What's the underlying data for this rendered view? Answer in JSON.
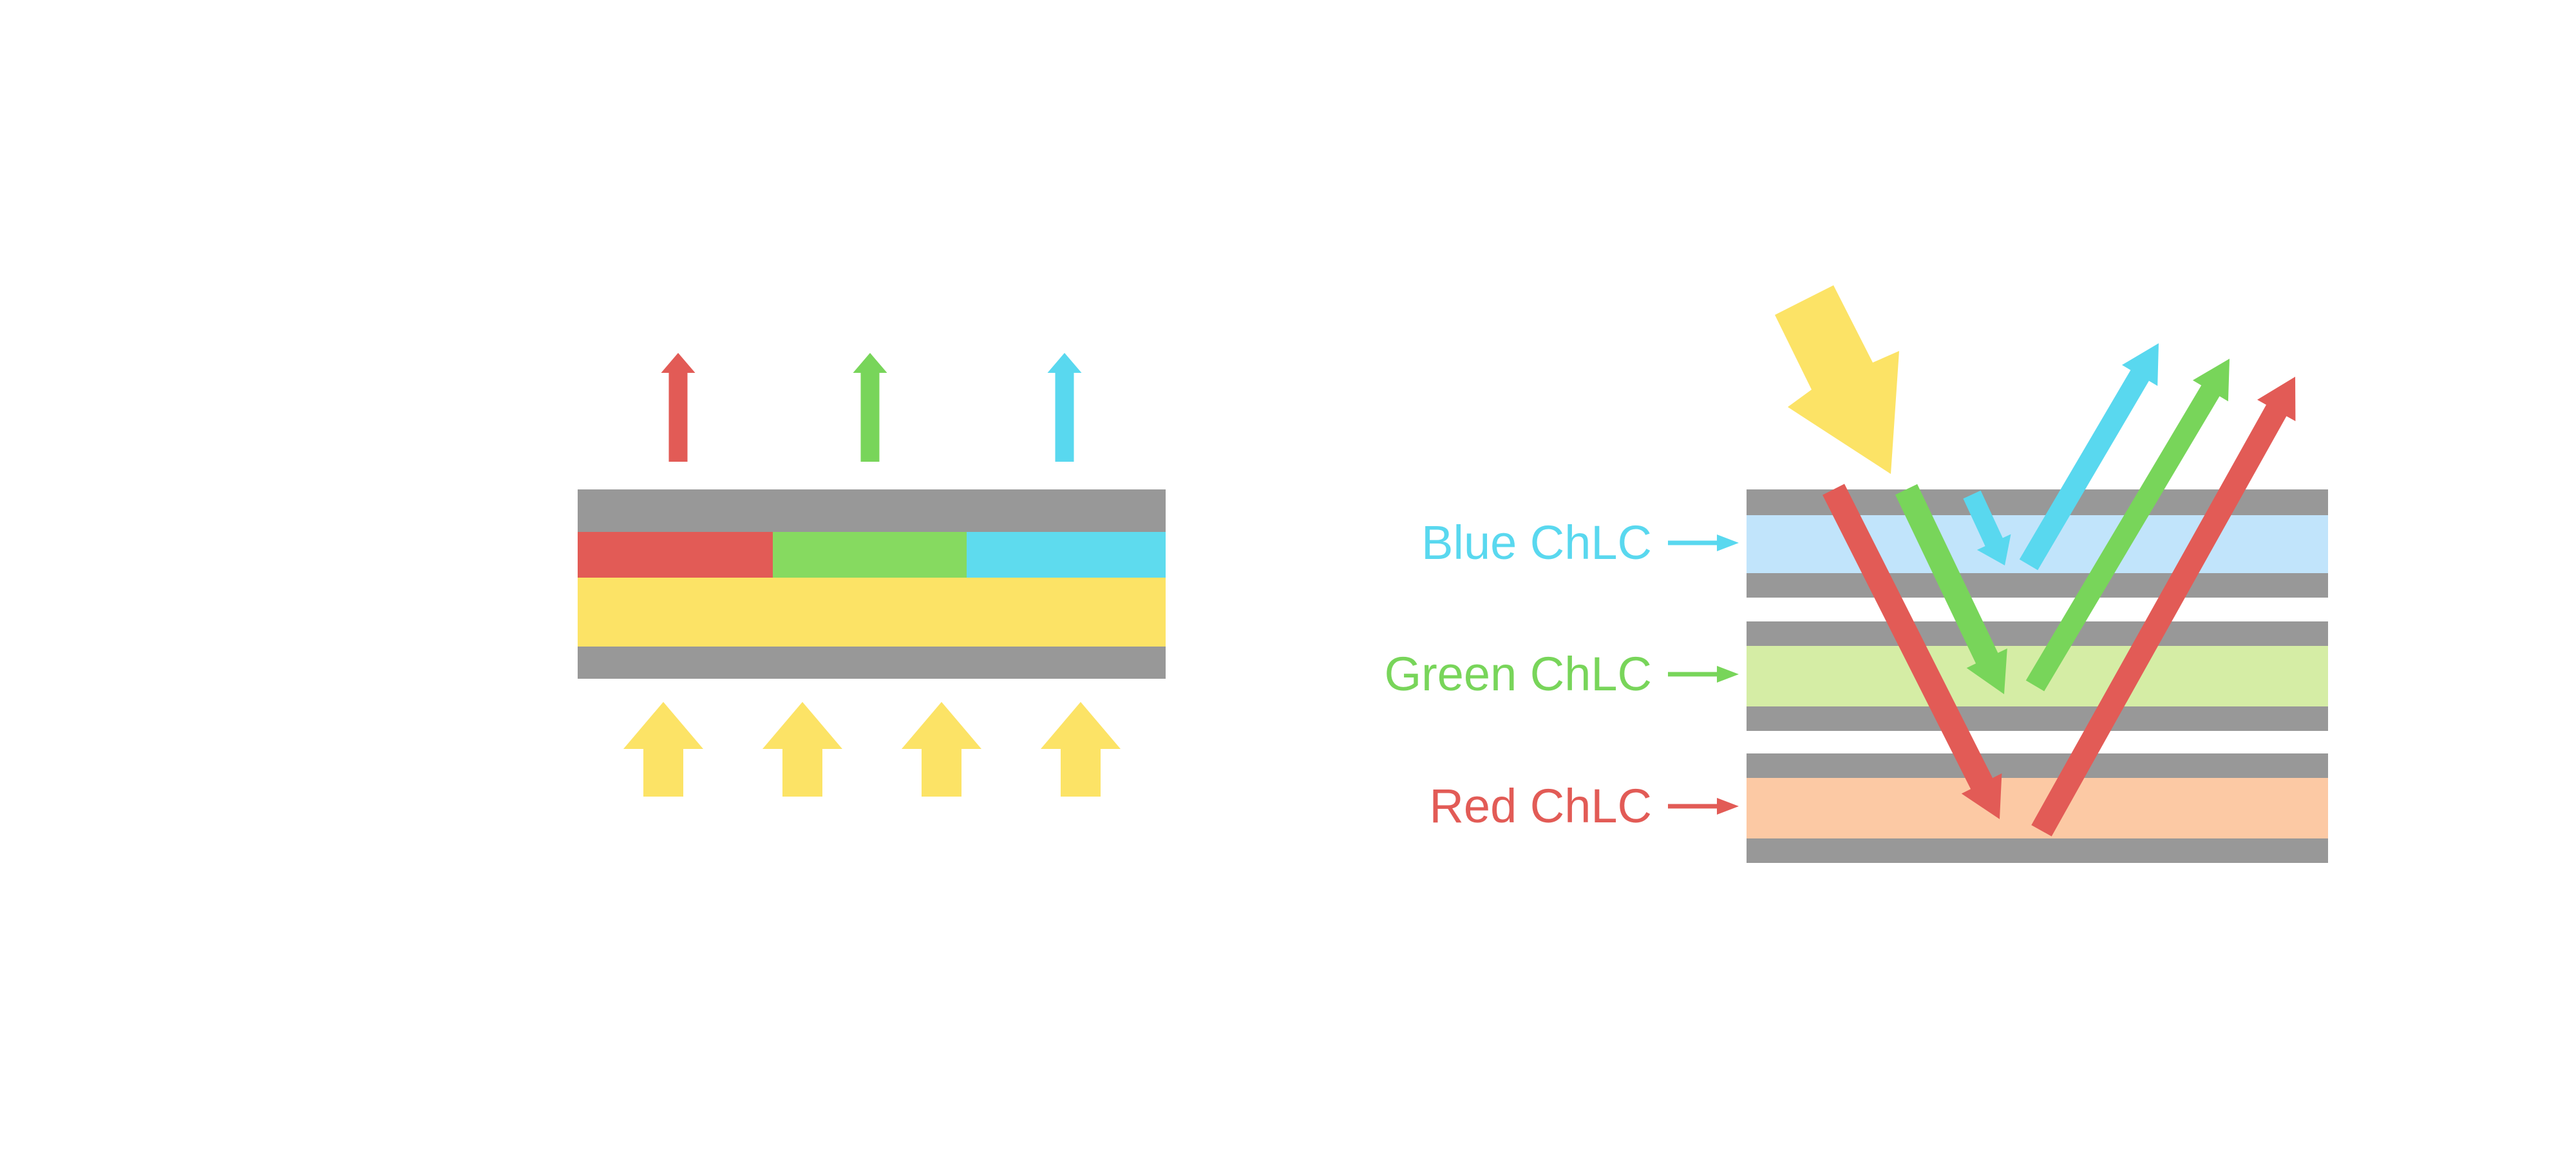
{
  "labels": {
    "blue": "Blue ChLC",
    "green": "Green ChLC",
    "red": "Red ChLC"
  },
  "icons": {
    "label_pointer": "right-arrow",
    "incident_light": "diagonal-down-arrow",
    "reflected_light": "diagonal-up-arrow",
    "backlight": "up-arrow"
  },
  "colors": {
    "red": "#E25B56",
    "green": "#78D55A",
    "cyan": "#59D8EF",
    "yellow": "#FCE366",
    "gray": "#989898",
    "seg-red": "#E25B56",
    "seg-green": "#86DA60",
    "seg-cyan": "#5EDBEE",
    "layer-blue": "#C1E4FB",
    "layer-green": "#D5EDA5",
    "layer-orange": "#FCC9A4",
    "background": "#FFFFFF"
  }
}
